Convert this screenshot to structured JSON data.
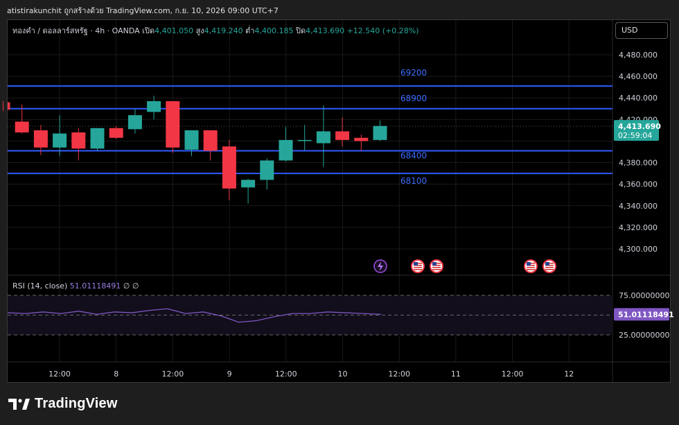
{
  "header": {
    "caption": "atistirakunchit ถูกสร้างด้วย TradingView.com, ก.ย. 10, 2026 09:00 UTC+7"
  },
  "legend": {
    "symbol": "ทองคำ / ดอลลาร์สหรัฐ · 4h · OANDA",
    "open_label": "เปิด",
    "open_value": "4,401.050",
    "high_label": "สูง",
    "high_value": "4,419.240",
    "low_label": "ต่ำ",
    "low_value": "4,400.185",
    "close_label": "ปิด",
    "close_value": "4,413.690",
    "change": "+12.540 (+0.28%)"
  },
  "currency_button": "USD",
  "rsi": {
    "label": "RSI (14, close)",
    "value": "51.01118491",
    "extra1": "∅",
    "extra2": "∅",
    "current_tag": "51.01118491"
  },
  "price_tag": {
    "price": "4,413.690",
    "countdown": "02:59:04"
  },
  "brand": {
    "name": "TradingView"
  },
  "colors": {
    "up": "#26a69a",
    "down": "#f23645",
    "level_line": "#2f5bff",
    "rsi_line": "#7e57c2",
    "background": "#000000"
  },
  "chart_data": {
    "type": "candlestick",
    "y_range": [
      4280,
      4500
    ],
    "y_ticks": [
      "4,480.000",
      "4,460.000",
      "4,440.000",
      "4,420.000",
      "4,380.000",
      "4,360.000",
      "4,340.000",
      "4,320.000",
      "4,300.000"
    ],
    "x_ticks": [
      "12:00",
      "8",
      "12:00",
      "9",
      "12:00",
      "10",
      "12:00",
      "11",
      "12:00",
      "12"
    ],
    "candles": [
      {
        "o": 4436,
        "h": 4437,
        "l": 4428,
        "c": 4429
      },
      {
        "o": 4418,
        "h": 4434,
        "l": 4407,
        "c": 4408
      },
      {
        "o": 4410,
        "h": 4415,
        "l": 4387,
        "c": 4394
      },
      {
        "o": 4394,
        "h": 4424,
        "l": 4386,
        "c": 4407
      },
      {
        "o": 4408,
        "h": 4412,
        "l": 4382,
        "c": 4393
      },
      {
        "o": 4393,
        "h": 4412,
        "l": 4391,
        "c": 4412
      },
      {
        "o": 4412,
        "h": 4414,
        "l": 4402,
        "c": 4403
      },
      {
        "o": 4411,
        "h": 4430,
        "l": 4407,
        "c": 4424
      },
      {
        "o": 4427,
        "h": 4442,
        "l": 4420,
        "c": 4437
      },
      {
        "o": 4437,
        "h": 4437,
        "l": 4389,
        "c": 4394
      },
      {
        "o": 4392,
        "h": 4409,
        "l": 4386,
        "c": 4410
      },
      {
        "o": 4410,
        "h": 4408,
        "l": 4382,
        "c": 4391
      },
      {
        "o": 4395,
        "h": 4401,
        "l": 4345,
        "c": 4356
      },
      {
        "o": 4357,
        "h": 4365,
        "l": 4342,
        "c": 4364
      },
      {
        "o": 4364,
        "h": 4384,
        "l": 4355,
        "c": 4382
      },
      {
        "o": 4382,
        "h": 4413,
        "l": 4381,
        "c": 4401
      },
      {
        "o": 4401,
        "h": 4415,
        "l": 4391,
        "c": 4401
      },
      {
        "o": 4398,
        "h": 4433,
        "l": 4376,
        "c": 4409
      },
      {
        "o": 4409,
        "h": 4422,
        "l": 4395,
        "c": 4401
      },
      {
        "o": 4403,
        "h": 4406,
        "l": 4391,
        "c": 4400
      },
      {
        "o": 4401,
        "h": 4419,
        "l": 4400,
        "c": 4414
      }
    ],
    "levels": [
      {
        "label": "69200",
        "price": 4451
      },
      {
        "label": "68900",
        "price": 4430
      },
      {
        "label": "68400",
        "price": 4391
      },
      {
        "label": "68100",
        "price": 4370
      }
    ],
    "current_price": 4413.69,
    "events": [
      "lightning",
      "us-flag",
      "us-flag",
      "us-flag",
      "us-flag"
    ],
    "rsi": {
      "levels": [
        "75.00000000",
        "25.00000000"
      ],
      "range": [
        0,
        100
      ],
      "values": [
        53,
        52,
        54,
        52,
        55,
        51,
        54,
        53,
        56,
        58,
        52,
        54,
        49,
        41,
        43,
        48,
        52,
        52,
        54,
        53,
        52,
        51
      ]
    }
  }
}
